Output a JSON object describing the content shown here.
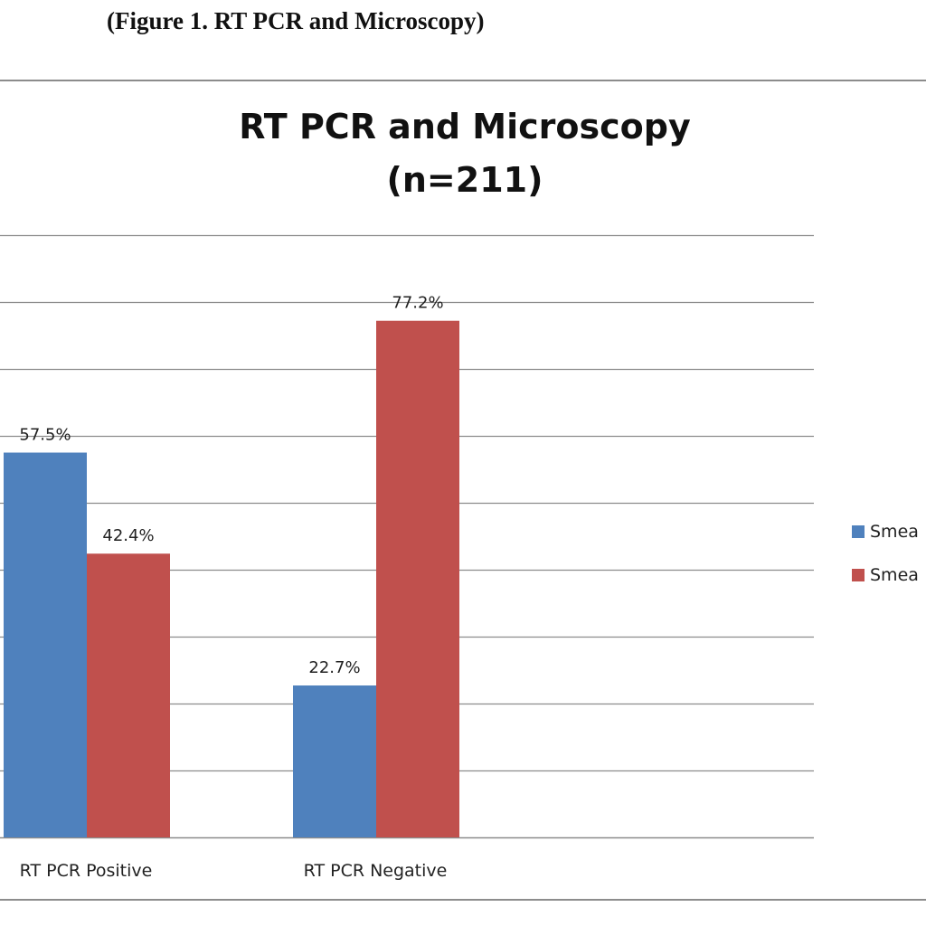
{
  "figure_caption": "(Figure 1.  RT PCR and Microscopy)",
  "chart_data": {
    "type": "bar",
    "title": "RT PCR and Microscopy",
    "subtitle": "(n=211)",
    "xlabel": "",
    "ylabel": "",
    "categories": [
      "RT PCR Positive",
      "RT PCR Negative"
    ],
    "series": [
      {
        "name": "Smea",
        "color": "#4F81BD",
        "values": [
          57.5,
          22.7
        ],
        "labels": [
          "57.5%",
          "22.7%"
        ]
      },
      {
        "name": "Smea",
        "color": "#C0504D",
        "values": [
          42.4,
          77.2
        ],
        "labels": [
          "42.4%",
          "77.2%"
        ]
      }
    ],
    "ylim": [
      0,
      90
    ],
    "grid": true,
    "legend_position": "right",
    "colors": {
      "series_1": "#4F81BD",
      "series_2": "#C0504D",
      "grid": "#8c8c8c"
    }
  }
}
